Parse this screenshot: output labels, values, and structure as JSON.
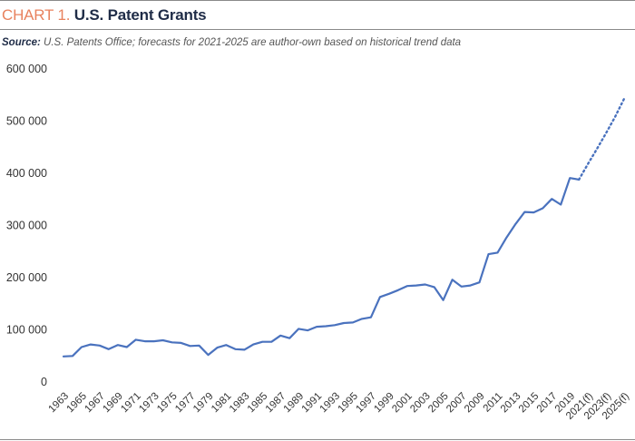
{
  "header": {
    "title_prefix": "CHART 1.",
    "title": "U.S. Patent Grants",
    "source_label": "Source:",
    "source_text": "U.S. Patents Office; forecasts for 2021-2025 are author-own based on historical trend data"
  },
  "colors": {
    "line": "#4a72be",
    "title_prefix": "#e8825e",
    "title": "#1f2c47"
  },
  "chart_data": {
    "type": "line",
    "title": "U.S. Patent Grants",
    "xlabel": "",
    "ylabel": "",
    "ylim": [
      0,
      600000
    ],
    "yticks": [
      0,
      100000,
      200000,
      300000,
      400000,
      500000,
      600000
    ],
    "ytick_labels": [
      "0",
      "100 000",
      "200 000",
      "300 000",
      "400 000",
      "500 000",
      "600 000"
    ],
    "grid": false,
    "xtick_labels": [
      "1963",
      "1965",
      "1967",
      "1969",
      "1971",
      "1973",
      "1975",
      "1977",
      "1979",
      "1981",
      "1983",
      "1985",
      "1987",
      "1989",
      "1991",
      "1993",
      "1995",
      "1997",
      "1999",
      "2001",
      "2003",
      "2005",
      "2007",
      "2009",
      "2011",
      "2013",
      "2015",
      "2017",
      "2019",
      "2021(f)",
      "2023(f)",
      "2025(f)"
    ],
    "series": [
      {
        "style": "solid",
        "x": [
          1963,
          1964,
          1965,
          1966,
          1967,
          1968,
          1969,
          1970,
          1971,
          1972,
          1973,
          1974,
          1975,
          1976,
          1977,
          1978,
          1979,
          1980,
          1981,
          1982,
          1983,
          1984,
          1985,
          1986,
          1987,
          1988,
          1989,
          1990,
          1991,
          1992,
          1993,
          1994,
          1995,
          1996,
          1997,
          1998,
          1999,
          2000,
          2001,
          2002,
          2003,
          2004,
          2005,
          2006,
          2007,
          2008,
          2009,
          2010,
          2011,
          2012,
          2013,
          2014,
          2015,
          2016,
          2017,
          2018,
          2019,
          2020
        ],
        "values": [
          49000,
          50000,
          67000,
          72000,
          70000,
          63000,
          71000,
          67000,
          81000,
          78000,
          78000,
          80000,
          76000,
          75000,
          69000,
          70000,
          52000,
          66000,
          71000,
          63000,
          62000,
          72000,
          77000,
          77000,
          89000,
          84000,
          102000,
          99000,
          106000,
          107000,
          109000,
          113000,
          114000,
          121000,
          124000,
          163000,
          169000,
          176000,
          184000,
          185000,
          187000,
          182000,
          157000,
          196000,
          183000,
          185000,
          191000,
          245000,
          248000,
          277000,
          303000,
          326000,
          325000,
          333000,
          351000,
          340000,
          391000,
          388000
        ]
      },
      {
        "style": "dotted",
        "x": [
          2020,
          2021,
          2022,
          2023,
          2024,
          2025
        ],
        "values": [
          388000,
          418000,
          447000,
          477000,
          508000,
          543000
        ]
      }
    ]
  }
}
